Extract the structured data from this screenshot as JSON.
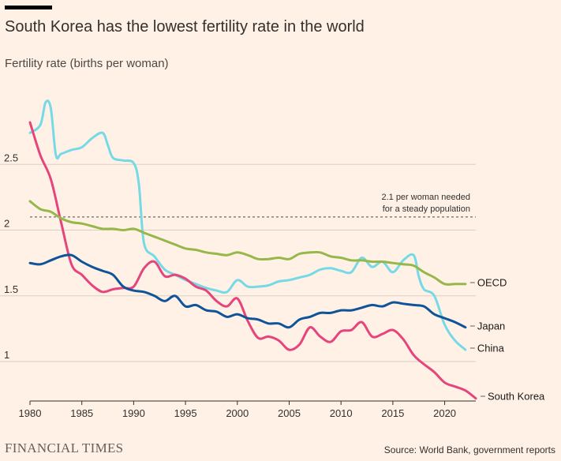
{
  "header": {
    "title": "South Korea has the lowest fertility rate in the world",
    "subtitle": "Fertility rate (births per woman)"
  },
  "footer": {
    "logo_text": "FINANCIAL TIMES",
    "source": "Source: World Bank, government reports"
  },
  "chart_data": {
    "type": "line",
    "title": "South Korea has the lowest fertility rate in the world",
    "ylabel": "Fertility rate (births per woman)",
    "xlim": [
      1980,
      2023
    ],
    "ylim": [
      0.7,
      3.0
    ],
    "yticks": [
      1,
      1.5,
      2,
      2.5
    ],
    "xticks": [
      1980,
      1985,
      1990,
      1995,
      2000,
      2005,
      2010,
      2015,
      2020
    ],
    "grid": true,
    "reference_line": {
      "y": 2.1,
      "label_line1": "2.1 per woman needed",
      "label_line2": "for a steady population"
    },
    "series": [
      {
        "name": "China",
        "color": "#76d9e6",
        "points": [
          [
            1980,
            2.74
          ],
          [
            1981,
            2.8
          ],
          [
            1981.5,
            2.97
          ],
          [
            1982,
            2.93
          ],
          [
            1982.5,
            2.57
          ],
          [
            1983,
            2.58
          ],
          [
            1984,
            2.61
          ],
          [
            1985,
            2.63
          ],
          [
            1986,
            2.7
          ],
          [
            1987,
            2.74
          ],
          [
            1987.5,
            2.65
          ],
          [
            1988,
            2.55
          ],
          [
            1989,
            2.53
          ],
          [
            1990,
            2.51
          ],
          [
            1990.5,
            2.35
          ],
          [
            1991,
            1.9
          ],
          [
            1992,
            1.8
          ],
          [
            1993,
            1.7
          ],
          [
            1994,
            1.66
          ],
          [
            1995,
            1.62
          ],
          [
            1996,
            1.59
          ],
          [
            1997,
            1.56
          ],
          [
            1998,
            1.54
          ],
          [
            1999,
            1.53
          ],
          [
            2000,
            1.62
          ],
          [
            2001,
            1.57
          ],
          [
            2002,
            1.57
          ],
          [
            2003,
            1.58
          ],
          [
            2004,
            1.61
          ],
          [
            2005,
            1.62
          ],
          [
            2006,
            1.64
          ],
          [
            2007,
            1.66
          ],
          [
            2008,
            1.7
          ],
          [
            2009,
            1.71
          ],
          [
            2010,
            1.69
          ],
          [
            2011,
            1.68
          ],
          [
            2012,
            1.79
          ],
          [
            2013,
            1.72
          ],
          [
            2014,
            1.76
          ],
          [
            2015,
            1.68
          ],
          [
            2016,
            1.77
          ],
          [
            2017,
            1.81
          ],
          [
            2017.5,
            1.65
          ],
          [
            2018,
            1.55
          ],
          [
            2019,
            1.5
          ],
          [
            2020,
            1.28
          ],
          [
            2021,
            1.16
          ],
          [
            2022,
            1.09
          ]
        ]
      },
      {
        "name": "South Korea",
        "color": "#e5457b",
        "points": [
          [
            1980,
            2.82
          ],
          [
            1981,
            2.57
          ],
          [
            1982,
            2.39
          ],
          [
            1983,
            2.06
          ],
          [
            1984,
            1.74
          ],
          [
            1985,
            1.66
          ],
          [
            1986,
            1.58
          ],
          [
            1987,
            1.53
          ],
          [
            1988,
            1.55
          ],
          [
            1989,
            1.56
          ],
          [
            1990,
            1.57
          ],
          [
            1991,
            1.71
          ],
          [
            1992,
            1.76
          ],
          [
            1993,
            1.65
          ],
          [
            1994,
            1.66
          ],
          [
            1995,
            1.63
          ],
          [
            1996,
            1.57
          ],
          [
            1997,
            1.54
          ],
          [
            1998,
            1.46
          ],
          [
            1999,
            1.42
          ],
          [
            2000,
            1.48
          ],
          [
            2001,
            1.31
          ],
          [
            2002,
            1.18
          ],
          [
            2003,
            1.19
          ],
          [
            2004,
            1.16
          ],
          [
            2005,
            1.09
          ],
          [
            2006,
            1.13
          ],
          [
            2007,
            1.26
          ],
          [
            2008,
            1.19
          ],
          [
            2009,
            1.15
          ],
          [
            2010,
            1.23
          ],
          [
            2011,
            1.24
          ],
          [
            2012,
            1.3
          ],
          [
            2013,
            1.19
          ],
          [
            2014,
            1.21
          ],
          [
            2015,
            1.24
          ],
          [
            2016,
            1.17
          ],
          [
            2017,
            1.05
          ],
          [
            2018,
            0.98
          ],
          [
            2019,
            0.92
          ],
          [
            2020,
            0.84
          ],
          [
            2021,
            0.81
          ],
          [
            2022,
            0.78
          ],
          [
            2023,
            0.72
          ]
        ]
      },
      {
        "name": "Japan",
        "color": "#0f5499",
        "points": [
          [
            1980,
            1.75
          ],
          [
            1981,
            1.74
          ],
          [
            1982,
            1.77
          ],
          [
            1983,
            1.8
          ],
          [
            1984,
            1.81
          ],
          [
            1985,
            1.76
          ],
          [
            1986,
            1.72
          ],
          [
            1987,
            1.69
          ],
          [
            1988,
            1.66
          ],
          [
            1989,
            1.57
          ],
          [
            1990,
            1.54
          ],
          [
            1991,
            1.53
          ],
          [
            1992,
            1.5
          ],
          [
            1993,
            1.46
          ],
          [
            1994,
            1.5
          ],
          [
            1995,
            1.42
          ],
          [
            1996,
            1.43
          ],
          [
            1997,
            1.39
          ],
          [
            1998,
            1.38
          ],
          [
            1999,
            1.34
          ],
          [
            2000,
            1.36
          ],
          [
            2001,
            1.33
          ],
          [
            2002,
            1.32
          ],
          [
            2003,
            1.29
          ],
          [
            2004,
            1.29
          ],
          [
            2005,
            1.26
          ],
          [
            2006,
            1.32
          ],
          [
            2007,
            1.34
          ],
          [
            2008,
            1.37
          ],
          [
            2009,
            1.37
          ],
          [
            2010,
            1.39
          ],
          [
            2011,
            1.39
          ],
          [
            2012,
            1.41
          ],
          [
            2013,
            1.43
          ],
          [
            2014,
            1.42
          ],
          [
            2015,
            1.45
          ],
          [
            2016,
            1.44
          ],
          [
            2017,
            1.43
          ],
          [
            2018,
            1.42
          ],
          [
            2019,
            1.36
          ],
          [
            2020,
            1.33
          ],
          [
            2021,
            1.3
          ],
          [
            2022,
            1.26
          ]
        ]
      },
      {
        "name": "OECD",
        "color": "#96b84a",
        "points": [
          [
            1980,
            2.22
          ],
          [
            1981,
            2.16
          ],
          [
            1982,
            2.14
          ],
          [
            1983,
            2.09
          ],
          [
            1984,
            2.06
          ],
          [
            1985,
            2.05
          ],
          [
            1986,
            2.03
          ],
          [
            1987,
            2.01
          ],
          [
            1988,
            2.01
          ],
          [
            1989,
            2.0
          ],
          [
            1990,
            2.01
          ],
          [
            1991,
            1.98
          ],
          [
            1992,
            1.95
          ],
          [
            1993,
            1.92
          ],
          [
            1994,
            1.89
          ],
          [
            1995,
            1.86
          ],
          [
            1996,
            1.85
          ],
          [
            1997,
            1.83
          ],
          [
            1998,
            1.82
          ],
          [
            1999,
            1.81
          ],
          [
            2000,
            1.83
          ],
          [
            2001,
            1.81
          ],
          [
            2002,
            1.78
          ],
          [
            2003,
            1.78
          ],
          [
            2004,
            1.79
          ],
          [
            2005,
            1.78
          ],
          [
            2006,
            1.82
          ],
          [
            2007,
            1.83
          ],
          [
            2008,
            1.83
          ],
          [
            2009,
            1.8
          ],
          [
            2010,
            1.79
          ],
          [
            2011,
            1.77
          ],
          [
            2012,
            1.77
          ],
          [
            2013,
            1.76
          ],
          [
            2014,
            1.76
          ],
          [
            2015,
            1.75
          ],
          [
            2016,
            1.74
          ],
          [
            2017,
            1.73
          ],
          [
            2018,
            1.68
          ],
          [
            2019,
            1.64
          ],
          [
            2020,
            1.59
          ],
          [
            2021,
            1.59
          ],
          [
            2022,
            1.59
          ]
        ]
      }
    ]
  }
}
